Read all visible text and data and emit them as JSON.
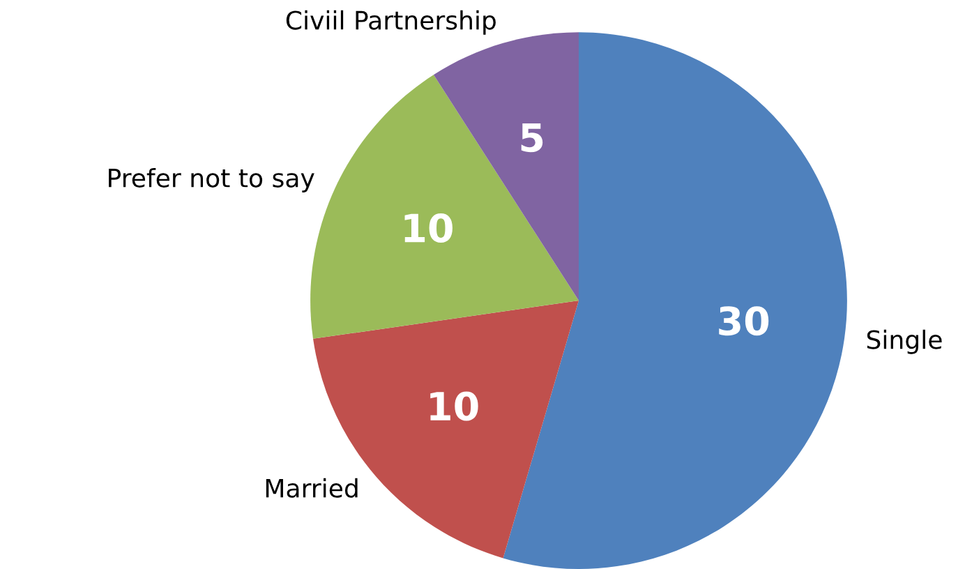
{
  "chart_data": {
    "type": "pie",
    "categories": [
      "Single",
      "Married",
      "Prefer not to say",
      "Civiil Partnership"
    ],
    "values": [
      30,
      10,
      10,
      5
    ],
    "colors": [
      "#4f81bd",
      "#c0504d",
      "#9bbb59",
      "#8064a2"
    ],
    "data_labels": true,
    "legend": false
  }
}
